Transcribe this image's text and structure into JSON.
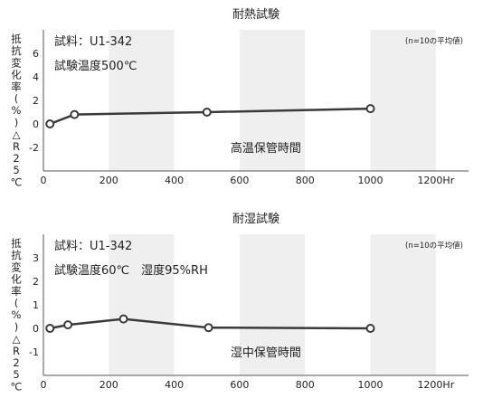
{
  "chart_data": [
    {
      "type": "line",
      "title": "耐熱試験",
      "ylabel": "抵抗変化率(%)△R25℃",
      "xlim": [
        0,
        1300
      ],
      "ylim": [
        -4,
        8
      ],
      "x_ticks": [
        0,
        200,
        400,
        600,
        800,
        1000,
        1200
      ],
      "x_tick_labels": [
        "0",
        "200",
        "400",
        "600",
        "800",
        "1000",
        "1200Hr"
      ],
      "y_ticks": [
        -2,
        0,
        2,
        4,
        6
      ],
      "y_tick_labels": [
        "-2",
        "0",
        "2",
        "4",
        "6"
      ],
      "sample_label": "試料：U1-342",
      "condition_label": "試験温度500℃",
      "note": "(n=10の平均値)",
      "annotation": "高温保管時間",
      "grid": "alternating vertical bands",
      "series": [
        {
          "color": "#3a3a3a",
          "points": [
            [
              20,
              0.0
            ],
            [
              95,
              0.8
            ],
            [
              500,
              1.0
            ],
            [
              1000,
              1.3
            ]
          ]
        }
      ]
    },
    {
      "type": "line",
      "title": "耐湿試験",
      "ylabel": "抵抗変化率(%)△R25℃",
      "xlim": [
        0,
        1300
      ],
      "ylim": [
        -2,
        4
      ],
      "x_ticks": [
        0,
        200,
        400,
        600,
        800,
        1000,
        1200
      ],
      "x_tick_labels": [
        "0",
        "200",
        "400",
        "600",
        "800",
        "1000",
        "1200Hr"
      ],
      "y_ticks": [
        -1,
        0,
        1,
        2,
        3
      ],
      "y_tick_labels": [
        "-1",
        "0",
        "1",
        "2",
        "3"
      ],
      "sample_label": "試料：U1-342",
      "condition_label": "試験温度60℃　湿度95%RH",
      "note": "(n=10の平均値)",
      "annotation": "湿中保管時間",
      "grid": "alternating vertical bands",
      "series": [
        {
          "color": "#3a3a3a",
          "points": [
            [
              20,
              0.0
            ],
            [
              75,
              0.15
            ],
            [
              245,
              0.4
            ],
            [
              505,
              0.03
            ],
            [
              1000,
              0.0
            ]
          ]
        }
      ]
    }
  ],
  "colors": {
    "band": "#efefef",
    "plot_bg": "#ffffff",
    "axis": "#555555",
    "line": "#3a3a3a"
  }
}
